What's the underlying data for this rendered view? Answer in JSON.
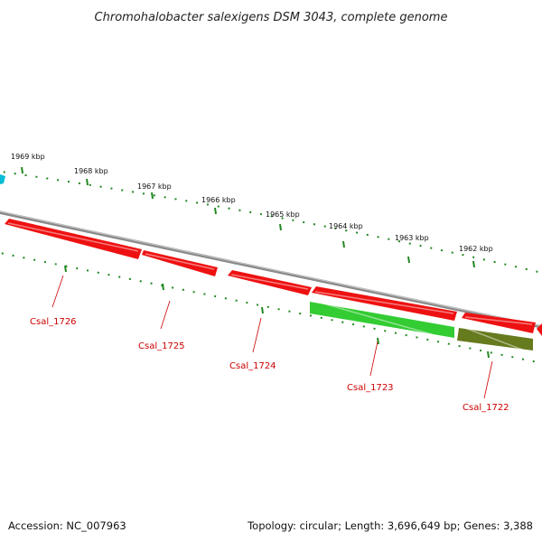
{
  "title": "Chromohalobacter salexigens DSM 3043, complete genome",
  "footer": {
    "accession": "Accession: NC_007963",
    "summary": "Topology: circular; Length: 3,696,649 bp; Genes: 3,388"
  },
  "ruler": {
    "ticks": [
      {
        "label": "1969 kbp"
      },
      {
        "label": "1968 kbp"
      },
      {
        "label": "1967 kbp"
      },
      {
        "label": "1966 kbp"
      },
      {
        "label": "1965 kbp"
      },
      {
        "label": "1964 kbp"
      },
      {
        "label": "1963 kbp"
      },
      {
        "label": "1962 kbp"
      }
    ]
  },
  "genes": [
    {
      "name": "Csal_1726",
      "color": "#ee1111",
      "strand": "forward"
    },
    {
      "name": "Csal_1725",
      "color": "#ee1111",
      "strand": "forward"
    },
    {
      "name": "Csal_1724",
      "color": "#ee1111",
      "strand": "forward"
    },
    {
      "name": "Csal_1723",
      "color": "#ee1111",
      "strand": "forward"
    },
    {
      "name": "Csal_1723",
      "color": "#33cc33",
      "strand": "reverse"
    },
    {
      "name": "Csal_1722",
      "color": "#ee1111",
      "strand": "forward"
    },
    {
      "name": "Csal_1722",
      "color": "#667a1e",
      "strand": "reverse"
    }
  ],
  "colors": {
    "backbone": "#888888",
    "ruler": "#228822",
    "label": "#cc0000",
    "edge_feature": "#00bcd4"
  }
}
